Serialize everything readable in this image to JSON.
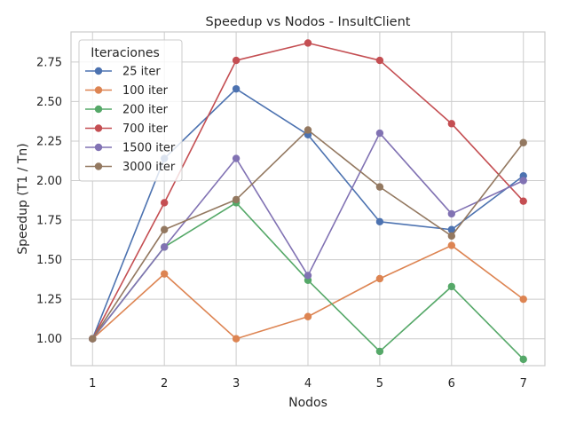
{
  "chart_data": {
    "type": "line",
    "title": "Speedup vs Nodos - InsultClient",
    "xlabel": "Nodos",
    "ylabel": "Speedup (T1 / Tn)",
    "x": [
      1,
      2,
      3,
      4,
      5,
      6,
      7
    ],
    "xlim": [
      0.7,
      7.3
    ],
    "ylim": [
      0.83,
      2.94
    ],
    "yticks": [
      "1.00",
      "1.25",
      "1.50",
      "1.75",
      "2.00",
      "2.25",
      "2.50",
      "2.75"
    ],
    "ytick_values": [
      1.0,
      1.25,
      1.5,
      1.75,
      2.0,
      2.25,
      2.5,
      2.75
    ],
    "xticks": [
      "1",
      "2",
      "3",
      "4",
      "5",
      "6",
      "7"
    ],
    "grid": true,
    "legend_title": "Iteraciones",
    "legend_position": "top-left",
    "series": [
      {
        "name": "25 iter",
        "color": "#4c72b0",
        "values": [
          1.0,
          2.14,
          2.58,
          2.29,
          1.74,
          1.69,
          2.03
        ]
      },
      {
        "name": "100 iter",
        "color": "#dd8452",
        "values": [
          1.0,
          1.41,
          1.0,
          1.14,
          1.38,
          1.59,
          1.25
        ]
      },
      {
        "name": "200 iter",
        "color": "#55a868",
        "values": [
          1.0,
          1.58,
          1.86,
          1.37,
          0.92,
          1.33,
          0.87
        ]
      },
      {
        "name": "700 iter",
        "color": "#c44e52",
        "values": [
          1.0,
          1.86,
          2.76,
          2.87,
          2.76,
          2.36,
          1.87
        ]
      },
      {
        "name": "1500 iter",
        "color": "#8172b3",
        "values": [
          1.0,
          1.58,
          2.14,
          1.4,
          2.3,
          1.79,
          2.0
        ]
      },
      {
        "name": "3000 iter",
        "color": "#937860",
        "values": [
          1.0,
          1.69,
          1.88,
          2.32,
          1.96,
          1.65,
          2.24
        ]
      }
    ]
  }
}
